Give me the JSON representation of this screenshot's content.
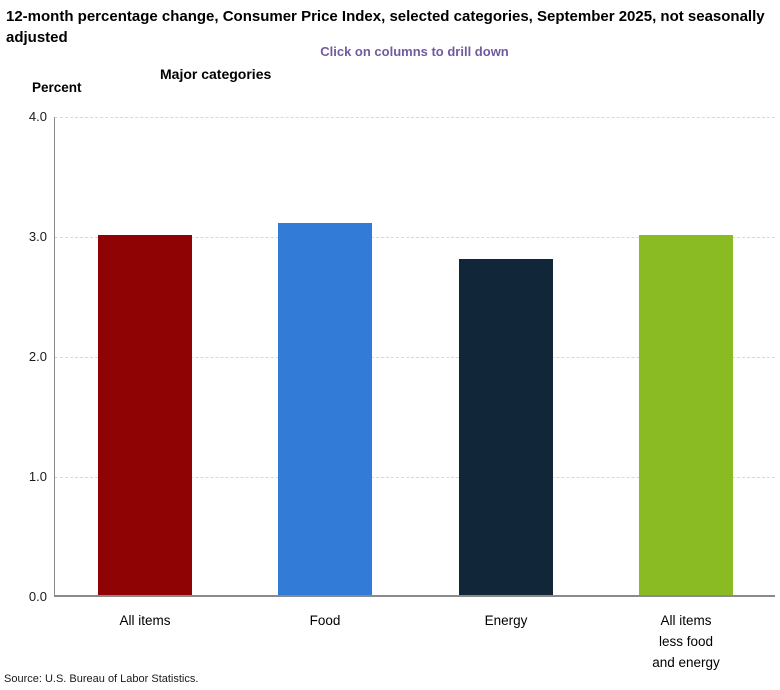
{
  "header": {
    "title": "12-month percentage change, Consumer Price Index, selected categories, September 2025, not seasonally adjusted",
    "drilldown_hint": "Click on columns to drill down",
    "series_label": "Major categories",
    "y_axis_unit": "Percent"
  },
  "footer": {
    "source": "Source: U.S. Bureau of Labor Statistics."
  },
  "colors": {
    "hint_text": "#735AA0",
    "gridline": "#d8d8d8",
    "axis_line": "#8a8a8a",
    "bar_all_items": "#8F0304",
    "bar_food": "#327CD8",
    "bar_energy": "#122639",
    "bar_core": "#8ABB23"
  },
  "chart_data": {
    "type": "bar",
    "title": "12-month percentage change, Consumer Price Index, selected categories, September 2025, not seasonally adjusted",
    "subtitle": "Click on columns to drill down",
    "series_name": "Major categories",
    "ylabel": "Percent",
    "xlabel": "",
    "categories": [
      "All items",
      "Food",
      "Energy",
      "All items less food and energy"
    ],
    "category_labels": [
      "All items",
      "Food",
      "Energy",
      "All items\nless food\nand energy"
    ],
    "values": [
      3.0,
      3.1,
      2.8,
      3.0
    ],
    "bar_colors": [
      "#8F0304",
      "#327CD8",
      "#122639",
      "#8ABB23"
    ],
    "ylim": [
      0.0,
      4.0
    ],
    "yticks": [
      0.0,
      1.0,
      2.0,
      3.0,
      4.0
    ],
    "ytick_labels": [
      "0.0",
      "1.0",
      "2.0",
      "3.0",
      "4.0"
    ],
    "grid": "horizontal-dashed",
    "legend": "none"
  }
}
